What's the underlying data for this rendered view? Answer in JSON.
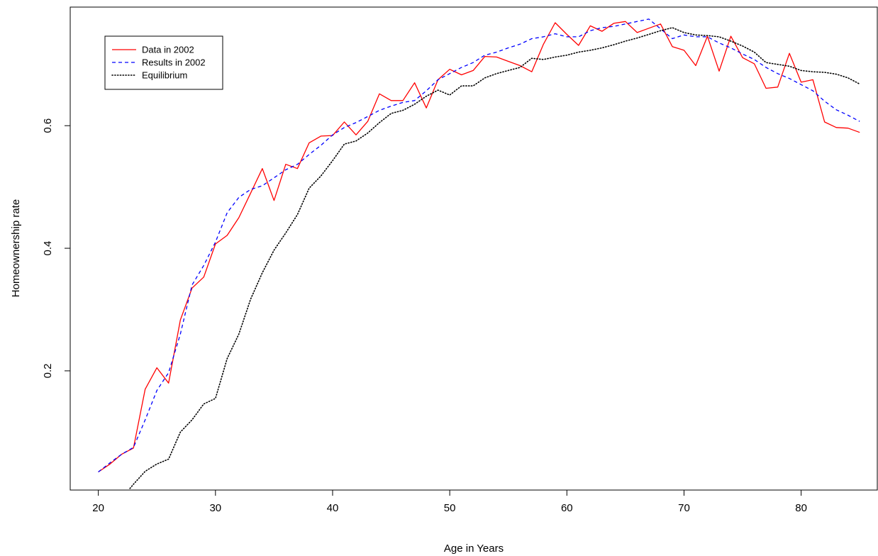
{
  "chart_data": {
    "type": "line",
    "xlabel": "Age in Years",
    "ylabel": "Homeownership rate",
    "xlim": [
      17.6,
      86.5
    ],
    "ylim": [
      0.0055,
      0.7935
    ],
    "x_ticks": [
      20,
      30,
      40,
      50,
      60,
      70,
      80
    ],
    "y_ticks": [
      0.2,
      0.4,
      0.6
    ],
    "grid": false,
    "legend_position": "top-left",
    "series": [
      {
        "name": "Data in 2002",
        "color": "#ff0000",
        "style": "solid",
        "x": [
          20,
          21,
          22,
          23,
          24,
          25,
          26,
          27,
          28,
          29,
          30,
          31,
          32,
          33,
          34,
          35,
          36,
          37,
          38,
          39,
          40,
          41,
          42,
          43,
          44,
          45,
          46,
          47,
          48,
          49,
          50,
          51,
          52,
          53,
          54,
          55,
          56,
          57,
          58,
          59,
          60,
          61,
          62,
          63,
          64,
          65,
          66,
          67,
          68,
          69,
          70,
          71,
          72,
          73,
          74,
          75,
          76,
          77,
          78,
          79,
          80,
          81,
          82,
          83,
          84,
          85
        ],
        "y": [
          0.035,
          0.048,
          0.064,
          0.074,
          0.17,
          0.205,
          0.18,
          0.283,
          0.335,
          0.353,
          0.407,
          0.421,
          0.45,
          0.49,
          0.53,
          0.478,
          0.537,
          0.53,
          0.572,
          0.583,
          0.584,
          0.606,
          0.585,
          0.607,
          0.652,
          0.641,
          0.641,
          0.67,
          0.629,
          0.675,
          0.692,
          0.683,
          0.69,
          0.713,
          0.712,
          0.705,
          0.698,
          0.688,
          0.733,
          0.768,
          0.749,
          0.731,
          0.763,
          0.754,
          0.767,
          0.77,
          0.752,
          0.759,
          0.766,
          0.729,
          0.723,
          0.698,
          0.746,
          0.689,
          0.746,
          0.711,
          0.701,
          0.661,
          0.663,
          0.718,
          0.671,
          0.675,
          0.606,
          0.597,
          0.596,
          0.589
        ]
      },
      {
        "name": "Results in 2002",
        "color": "#0000ff",
        "style": "dashed",
        "x": [
          20,
          21,
          22,
          23,
          24,
          25,
          26,
          27,
          28,
          29,
          30,
          31,
          32,
          33,
          34,
          35,
          36,
          37,
          38,
          39,
          40,
          41,
          42,
          43,
          44,
          45,
          46,
          47,
          48,
          49,
          50,
          51,
          52,
          53,
          54,
          55,
          56,
          57,
          58,
          59,
          60,
          61,
          62,
          63,
          64,
          65,
          66,
          67,
          68,
          69,
          70,
          71,
          72,
          73,
          74,
          75,
          76,
          77,
          78,
          79,
          80,
          81,
          82,
          83,
          84,
          85
        ],
        "y": [
          0.035,
          0.05,
          0.064,
          0.075,
          0.12,
          0.168,
          0.197,
          0.26,
          0.34,
          0.372,
          0.41,
          0.458,
          0.483,
          0.496,
          0.502,
          0.515,
          0.528,
          0.537,
          0.553,
          0.568,
          0.585,
          0.597,
          0.605,
          0.615,
          0.625,
          0.632,
          0.638,
          0.641,
          0.657,
          0.675,
          0.685,
          0.695,
          0.703,
          0.715,
          0.72,
          0.727,
          0.733,
          0.742,
          0.745,
          0.75,
          0.745,
          0.745,
          0.755,
          0.76,
          0.762,
          0.766,
          0.77,
          0.774,
          0.758,
          0.742,
          0.748,
          0.745,
          0.745,
          0.735,
          0.727,
          0.717,
          0.708,
          0.695,
          0.685,
          0.677,
          0.667,
          0.657,
          0.64,
          0.626,
          0.617,
          0.607
        ]
      },
      {
        "name": "Equilibrium",
        "color": "#000000",
        "style": "dotted",
        "x": [
          22.7,
          23,
          24,
          25,
          26,
          27,
          28,
          29,
          30,
          31,
          32,
          33,
          34,
          35,
          36,
          37,
          38,
          39,
          40,
          41,
          42,
          43,
          44,
          45,
          46,
          47,
          48,
          49,
          50,
          51,
          52,
          53,
          54,
          55,
          56,
          57,
          58,
          59,
          60,
          61,
          62,
          63,
          64,
          65,
          66,
          67,
          68,
          69,
          70,
          71,
          72,
          73,
          74,
          75,
          76,
          77,
          78,
          79,
          80,
          81,
          82,
          83,
          84,
          85
        ],
        "y": [
          0.008,
          0.015,
          0.036,
          0.048,
          0.056,
          0.1,
          0.12,
          0.146,
          0.155,
          0.22,
          0.26,
          0.317,
          0.36,
          0.397,
          0.425,
          0.455,
          0.498,
          0.518,
          0.543,
          0.57,
          0.575,
          0.588,
          0.605,
          0.62,
          0.625,
          0.635,
          0.648,
          0.658,
          0.65,
          0.665,
          0.665,
          0.678,
          0.685,
          0.69,
          0.695,
          0.71,
          0.708,
          0.712,
          0.715,
          0.72,
          0.723,
          0.727,
          0.732,
          0.738,
          0.743,
          0.749,
          0.755,
          0.76,
          0.752,
          0.748,
          0.747,
          0.745,
          0.738,
          0.73,
          0.72,
          0.703,
          0.7,
          0.697,
          0.69,
          0.688,
          0.687,
          0.684,
          0.678,
          0.668
        ]
      }
    ]
  }
}
